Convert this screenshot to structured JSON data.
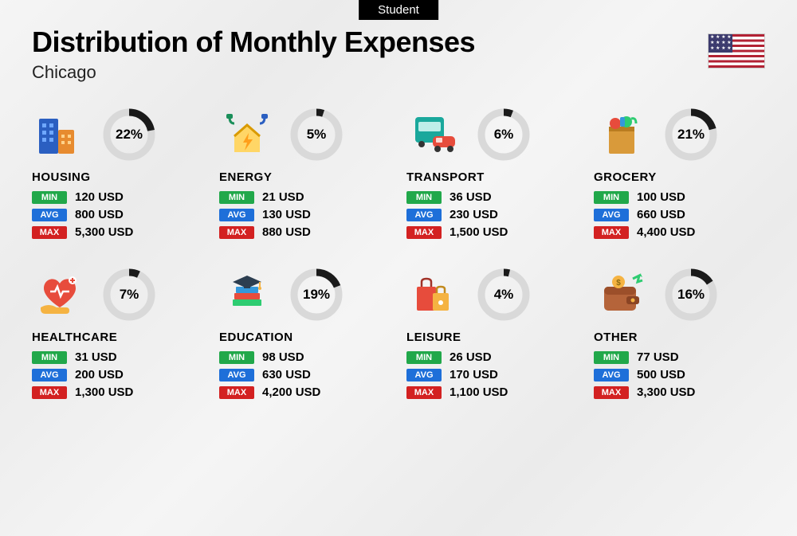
{
  "badge": "Student",
  "title": "Distribution of Monthly Expenses",
  "city": "Chicago",
  "country_flag": "usa",
  "currency": "USD",
  "labels": {
    "min": "MIN",
    "avg": "AVG",
    "max": "MAX"
  },
  "colors": {
    "min_badge": "#21a84a",
    "avg_badge": "#1e6fd9",
    "max_badge": "#d32121",
    "donut_track": "#d9d9d9",
    "donut_fill": "#1a1a1a",
    "background": "#f2f2f2",
    "text": "#000000"
  },
  "donut": {
    "stroke_width": 9,
    "radius": 28
  },
  "categories": [
    {
      "key": "housing",
      "name": "HOUSING",
      "pct": 22,
      "min": "120 USD",
      "avg": "800 USD",
      "max": "5,300 USD",
      "icon": "buildings"
    },
    {
      "key": "energy",
      "name": "ENERGY",
      "pct": 5,
      "min": "21 USD",
      "avg": "130 USD",
      "max": "880 USD",
      "icon": "house-bolt"
    },
    {
      "key": "transport",
      "name": "TRANSPORT",
      "pct": 6,
      "min": "36 USD",
      "avg": "230 USD",
      "max": "1,500 USD",
      "icon": "bus-car"
    },
    {
      "key": "grocery",
      "name": "GROCERY",
      "pct": 21,
      "min": "100 USD",
      "avg": "660 USD",
      "max": "4,400 USD",
      "icon": "grocery-bag"
    },
    {
      "key": "healthcare",
      "name": "HEALTHCARE",
      "pct": 7,
      "min": "31 USD",
      "avg": "200 USD",
      "max": "1,300 USD",
      "icon": "heart-hand"
    },
    {
      "key": "education",
      "name": "EDUCATION",
      "pct": 19,
      "min": "98 USD",
      "avg": "630 USD",
      "max": "4,200 USD",
      "icon": "grad-books"
    },
    {
      "key": "leisure",
      "name": "LEISURE",
      "pct": 4,
      "min": "26 USD",
      "avg": "170 USD",
      "max": "1,100 USD",
      "icon": "shopping-bags"
    },
    {
      "key": "other",
      "name": "OTHER",
      "pct": 16,
      "min": "77 USD",
      "avg": "500 USD",
      "max": "3,300 USD",
      "icon": "wallet"
    }
  ]
}
